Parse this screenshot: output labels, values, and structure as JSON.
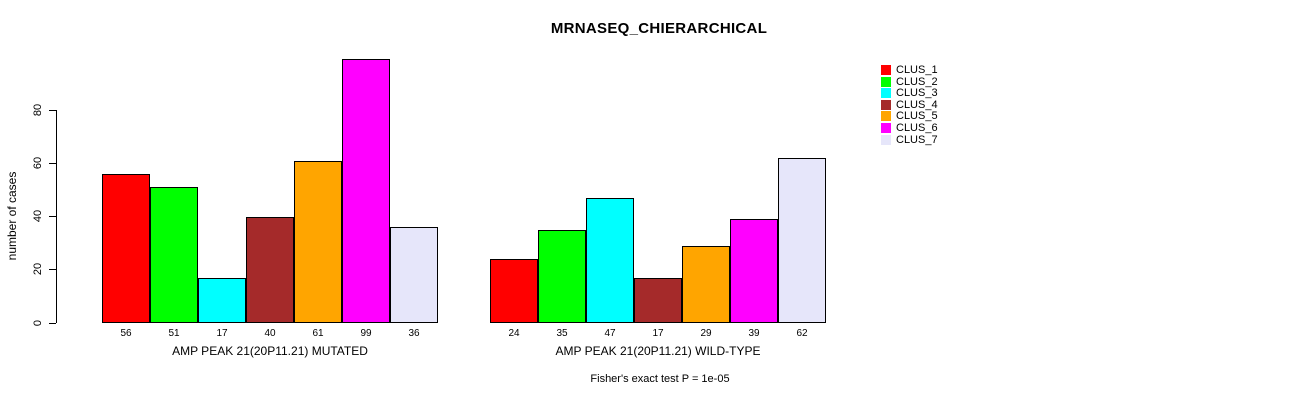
{
  "title": "MRNASEQ_CHIERARCHICAL",
  "footer": "Fisher's exact test P = 1e-05",
  "chart_data": {
    "type": "bar",
    "title": "MRNASEQ_CHIERARCHICAL",
    "ylabel": "number of cases",
    "yticks": [
      0,
      20,
      40,
      60,
      80
    ],
    "ylim": [
      0,
      100
    ],
    "grid": false,
    "legend_position": "right",
    "series_labels": [
      "CLUS_1",
      "CLUS_2",
      "CLUS_3",
      "CLUS_4",
      "CLUS_5",
      "CLUS_6",
      "CLUS_7"
    ],
    "colors": [
      "#ff0000",
      "#00ff00",
      "#00ffff",
      "#a52a2a",
      "#ffa500",
      "#ff00ff",
      "#e6e6fa"
    ],
    "groups": [
      {
        "xlabel": "AMP PEAK 21(20P11.21) MUTATED",
        "values": [
          56,
          51,
          17,
          40,
          61,
          99,
          36
        ]
      },
      {
        "xlabel": "AMP PEAK 21(20P11.21) WILD-TYPE",
        "values": [
          24,
          35,
          47,
          17,
          29,
          39,
          62
        ]
      }
    ],
    "annotation": "Fisher's exact test P = 1e-05"
  }
}
